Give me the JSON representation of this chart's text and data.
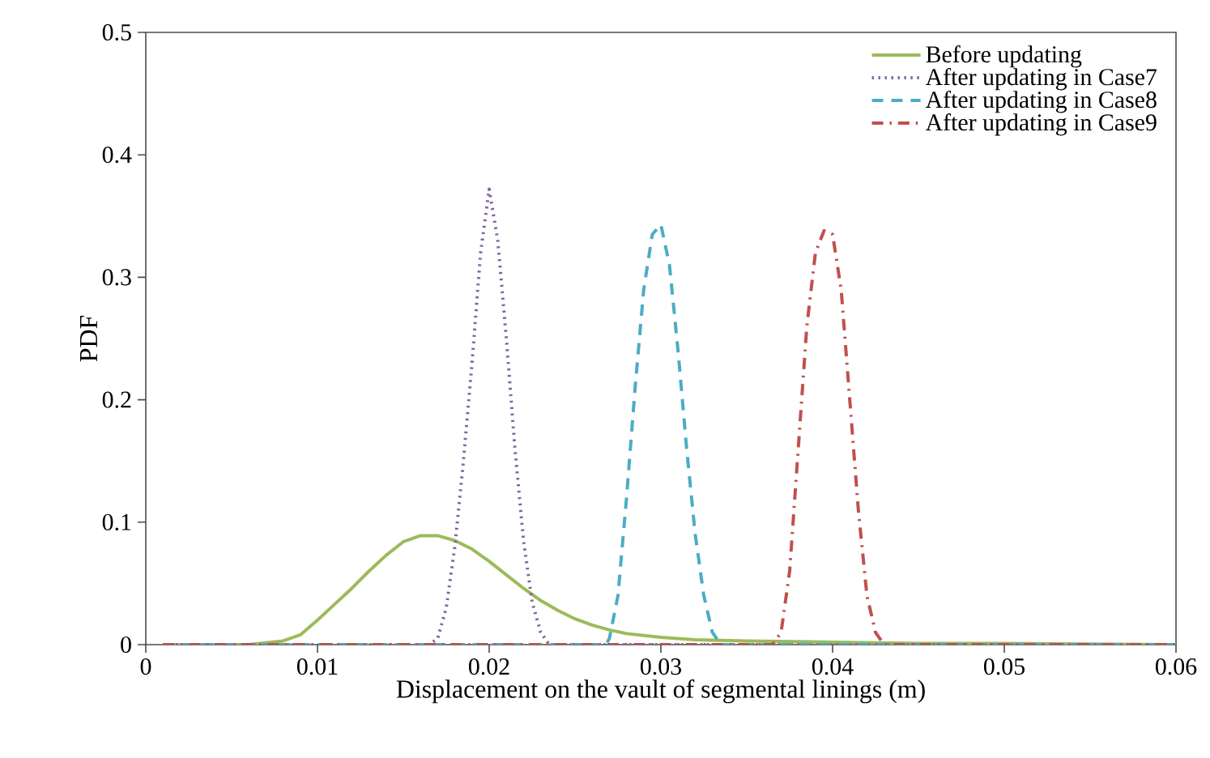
{
  "chart_data": {
    "type": "line",
    "xlabel": "Displacement on the vault of segmental linings (m)",
    "ylabel": "PDF",
    "xlim": [
      0,
      0.06
    ],
    "ylim": [
      0,
      0.5
    ],
    "xticks": [
      0,
      0.01,
      0.02,
      0.03,
      0.04,
      0.05,
      0.06
    ],
    "yticks": [
      0,
      0.1,
      0.2,
      0.3,
      0.4,
      0.5
    ],
    "grid": false,
    "legend": "top right",
    "marker": "none",
    "series": [
      {
        "name": "Before updating",
        "color": "#9bbb59",
        "line_style": "solid",
        "x": [
          0.001,
          0.006,
          0.008,
          0.009,
          0.01,
          0.011,
          0.012,
          0.013,
          0.014,
          0.015,
          0.016,
          0.017,
          0.018,
          0.019,
          0.02,
          0.021,
          0.022,
          0.023,
          0.024,
          0.025,
          0.026,
          0.027,
          0.028,
          0.03,
          0.032,
          0.035,
          0.04,
          0.045,
          0.05,
          0.06
        ],
        "values": [
          0,
          0,
          0.003,
          0.008,
          0.02,
          0.033,
          0.046,
          0.06,
          0.073,
          0.084,
          0.089,
          0.089,
          0.085,
          0.078,
          0.068,
          0.057,
          0.046,
          0.036,
          0.028,
          0.021,
          0.016,
          0.012,
          0.009,
          0.006,
          0.004,
          0.003,
          0.002,
          0.001,
          0.001,
          0
        ]
      },
      {
        "name": "After updating in Case7",
        "color": "#8064a2",
        "line_style": "dotted",
        "x": [
          0.001,
          0.0165,
          0.017,
          0.0175,
          0.018,
          0.0185,
          0.019,
          0.0195,
          0.02,
          0.0205,
          0.021,
          0.0215,
          0.022,
          0.0225,
          0.023,
          0.0235,
          0.06
        ],
        "values": [
          0,
          0,
          0.005,
          0.03,
          0.08,
          0.15,
          0.23,
          0.32,
          0.372,
          0.33,
          0.25,
          0.16,
          0.085,
          0.035,
          0.01,
          0,
          0
        ]
      },
      {
        "name": "After updating in Case8",
        "color": "#4bacc6",
        "line_style": "dashed",
        "x": [
          0.001,
          0.0268,
          0.027,
          0.0275,
          0.028,
          0.0285,
          0.029,
          0.0295,
          0.03,
          0.0305,
          0.031,
          0.0315,
          0.032,
          0.0325,
          0.033,
          0.0335,
          0.06
        ],
        "values": [
          0,
          0,
          0.005,
          0.04,
          0.12,
          0.21,
          0.29,
          0.335,
          0.343,
          0.31,
          0.24,
          0.16,
          0.09,
          0.04,
          0.01,
          0,
          0
        ]
      },
      {
        "name": "After updating in Case9",
        "color": "#c0504d",
        "line_style": "dashdot",
        "x": [
          0.001,
          0.0365,
          0.037,
          0.0375,
          0.038,
          0.0385,
          0.039,
          0.0395,
          0.04,
          0.0405,
          0.041,
          0.0415,
          0.042,
          0.0425,
          0.043,
          0.06
        ],
        "values": [
          0,
          0,
          0.01,
          0.06,
          0.16,
          0.26,
          0.32,
          0.338,
          0.335,
          0.29,
          0.2,
          0.11,
          0.04,
          0.01,
          0,
          0
        ]
      }
    ]
  }
}
